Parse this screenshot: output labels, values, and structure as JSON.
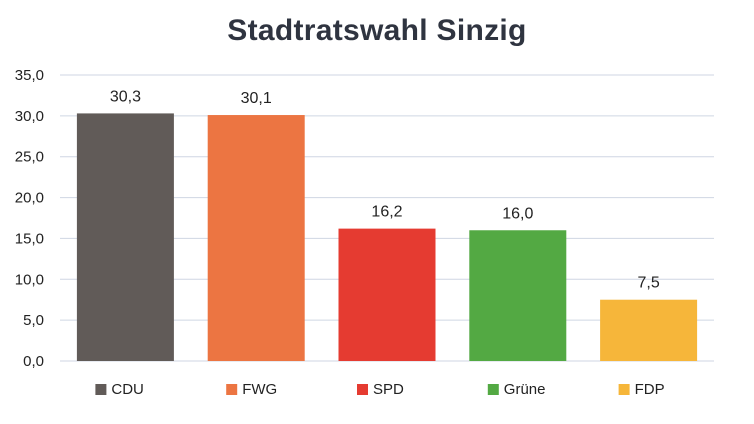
{
  "chart_data": {
    "type": "bar",
    "title": "Stadtratswahl Sinzig",
    "xlabel": "",
    "ylabel": "",
    "categories": [
      "CDU",
      "FWG",
      "SPD",
      "Grüne",
      "FDP"
    ],
    "values": [
      30.3,
      30.1,
      16.2,
      16.0,
      7.5
    ],
    "value_labels": [
      "30,3",
      "30,1",
      "16,2",
      "16,0",
      "7,5"
    ],
    "colors": [
      "#615b58",
      "#ec7542",
      "#e53b31",
      "#53a943",
      "#f6b63a"
    ],
    "ylim": [
      0,
      35
    ],
    "yticks": [
      0,
      5,
      10,
      15,
      20,
      25,
      30,
      35
    ],
    "ytick_labels": [
      "0,0",
      "5,0",
      "10,0",
      "15,0",
      "20,0",
      "25,0",
      "30,0",
      "35,0"
    ],
    "grid": true,
    "legend": "bottom",
    "grid_color": "#cfd6e3"
  }
}
